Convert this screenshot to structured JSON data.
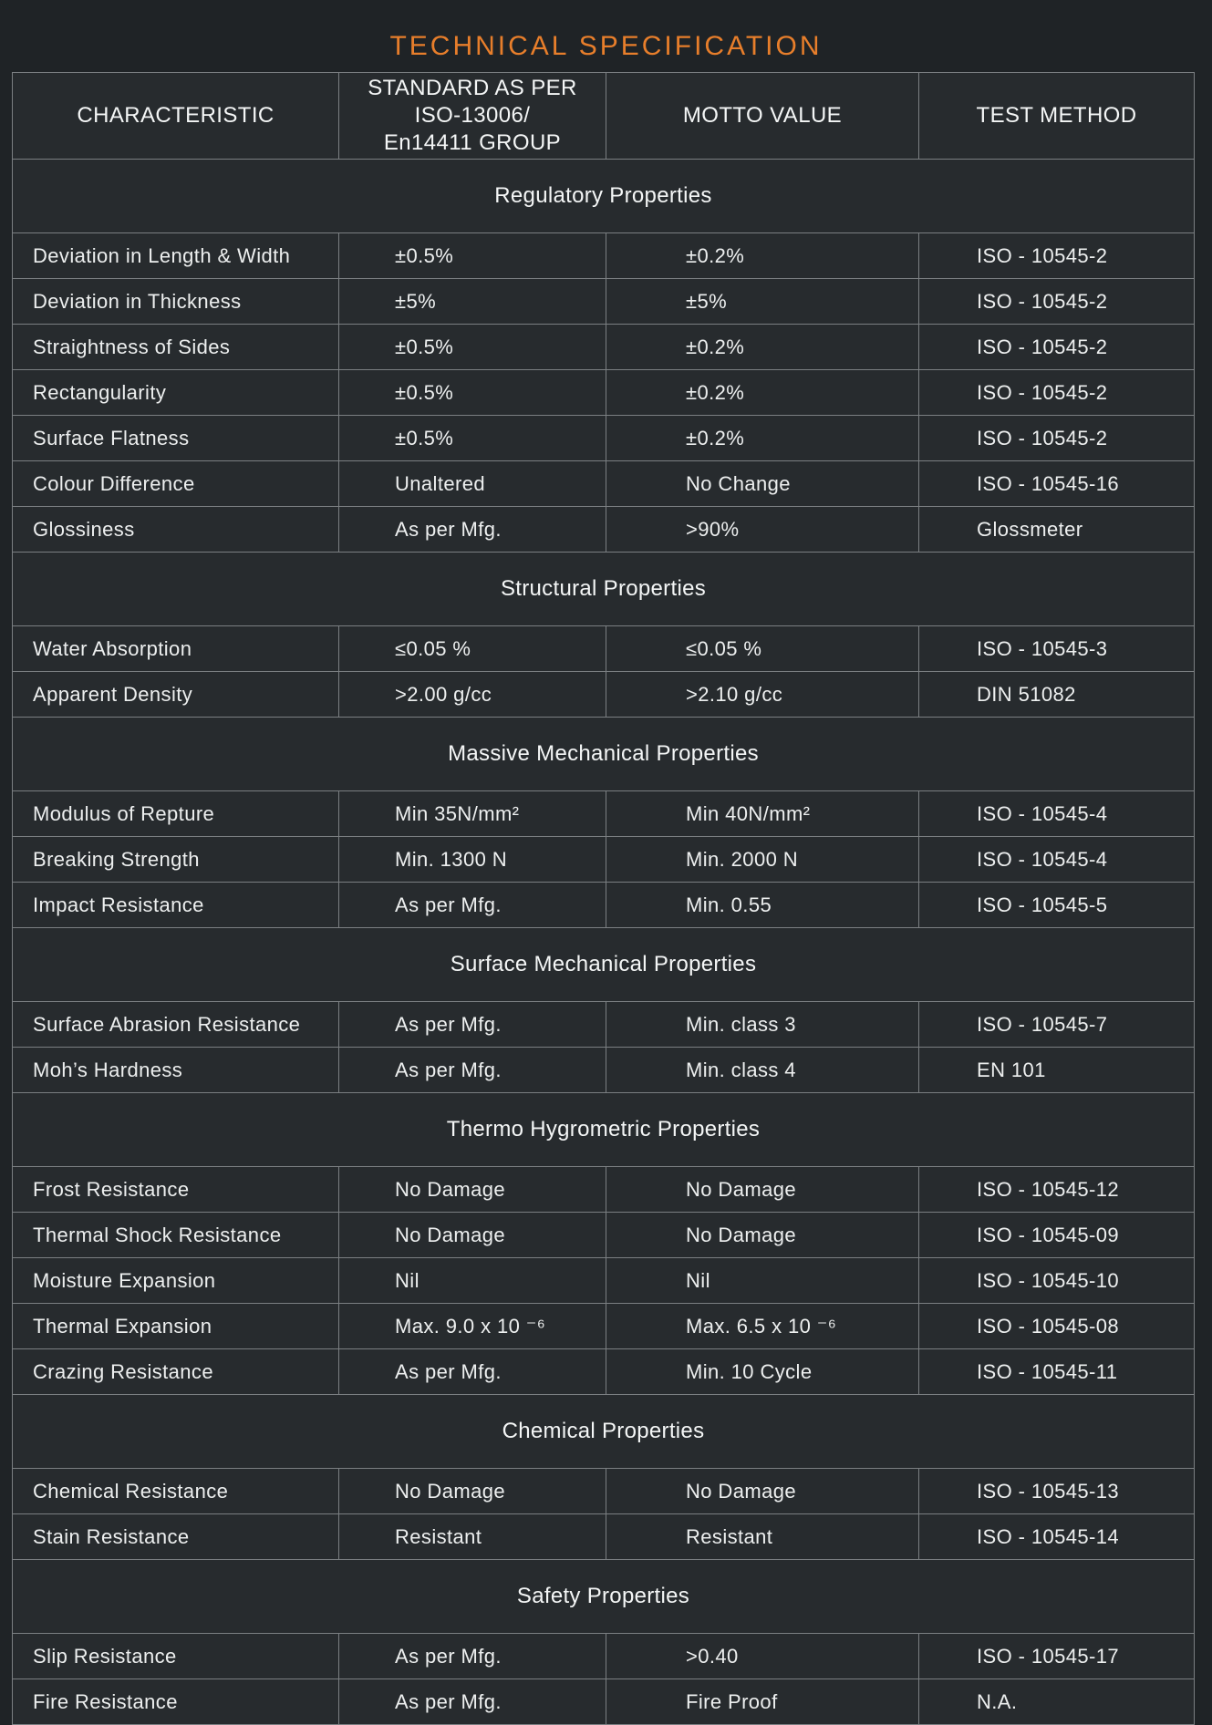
{
  "page_title": "TECHNICAL SPECIFICATION",
  "colors": {
    "accent_orange": "#e77e2b",
    "page_background": "#1f2326",
    "table_background": "#272b2e",
    "grid_line": "#7b7f82",
    "text_primary": "#f4f6f6"
  },
  "table": {
    "columns": [
      "CHARACTERISTIC",
      "STANDARD AS PER\nISO-13006/\nEn14411 GROUP",
      "MOTTO VALUE",
      "TEST METHOD"
    ],
    "sections": [
      {
        "title": "Regulatory Properties",
        "rows": [
          {
            "characteristic": "Deviation in Length & Width",
            "standard": "±0.5%",
            "motto": "±0.2%",
            "test": "ISO - 10545-2"
          },
          {
            "characteristic": "Deviation in Thickness",
            "standard": "±5%",
            "motto": "±5%",
            "test": "ISO - 10545-2"
          },
          {
            "characteristic": "Straightness of Sides",
            "standard": "±0.5%",
            "motto": "±0.2%",
            "test": "ISO - 10545-2"
          },
          {
            "characteristic": "Rectangularity",
            "standard": "±0.5%",
            "motto": "±0.2%",
            "test": "ISO - 10545-2"
          },
          {
            "characteristic": "Surface Flatness",
            "standard": "±0.5%",
            "motto": "±0.2%",
            "test": "ISO - 10545-2"
          },
          {
            "characteristic": "Colour Difference",
            "standard": "Unaltered",
            "motto": "No Change",
            "test": "ISO - 10545-16"
          },
          {
            "characteristic": "Glossiness",
            "standard": "As per Mfg.",
            "motto": ">90%",
            "test": "Glossmeter"
          }
        ]
      },
      {
        "title": "Structural Properties",
        "rows": [
          {
            "characteristic": "Water Absorption",
            "standard": "≤0.05 %",
            "motto": "≤0.05 %",
            "test": "ISO - 10545-3"
          },
          {
            "characteristic": "Apparent Density",
            "standard": ">2.00 g/cc",
            "motto": ">2.10 g/cc",
            "test": "DIN 51082"
          }
        ]
      },
      {
        "title": "Massive Mechanical Properties",
        "rows": [
          {
            "characteristic": "Modulus of Repture",
            "standard": "Min 35N/mm²",
            "motto": "Min 40N/mm²",
            "test": "ISO - 10545-4"
          },
          {
            "characteristic": "Breaking Strength",
            "standard": "Min. 1300 N",
            "motto": "Min. 2000 N",
            "test": "ISO - 10545-4"
          },
          {
            "characteristic": "Impact Resistance",
            "standard": "As per Mfg.",
            "motto": "Min. 0.55",
            "test": "ISO - 10545-5"
          }
        ]
      },
      {
        "title": "Surface Mechanical Properties",
        "rows": [
          {
            "characteristic": "Surface Abrasion Resistance",
            "standard": "As per Mfg.",
            "motto": "Min. class 3",
            "test": "ISO - 10545-7"
          },
          {
            "characteristic": "Moh’s Hardness",
            "standard": "As per Mfg.",
            "motto": "Min. class 4",
            "test": "EN 101"
          }
        ]
      },
      {
        "title": "Thermo Hygrometric Properties",
        "rows": [
          {
            "characteristic": "Frost Resistance",
            "standard": "No Damage",
            "motto": "No Damage",
            "test": "ISO - 10545-12"
          },
          {
            "characteristic": "Thermal Shock Resistance",
            "standard": "No Damage",
            "motto": "No Damage",
            "test": "ISO - 10545-09"
          },
          {
            "characteristic": "Moisture Expansion",
            "standard": "Nil",
            "motto": "Nil",
            "test": "ISO - 10545-10"
          },
          {
            "characteristic": "Thermal Expansion",
            "standard": "Max. 9.0 x 10 ⁻⁶",
            "motto": "Max. 6.5 x 10 ⁻⁶",
            "test": "ISO - 10545-08"
          },
          {
            "characteristic": "Crazing Resistance",
            "standard": "As per Mfg.",
            "motto": "Min. 10 Cycle",
            "test": "ISO - 10545-11"
          }
        ]
      },
      {
        "title": "Chemical Properties",
        "rows": [
          {
            "characteristic": "Chemical Resistance",
            "standard": "No Damage",
            "motto": "No Damage",
            "test": "ISO - 10545-13",
            "emphasis": true
          },
          {
            "characteristic": "Stain Resistance",
            "standard": "Resistant",
            "motto": "Resistant",
            "test": "ISO - 10545-14",
            "emphasis": true
          }
        ]
      },
      {
        "title": "Safety Properties",
        "rows": [
          {
            "characteristic": "Slip Resistance",
            "standard": "As per Mfg.",
            "motto": ">0.40",
            "test": "ISO - 10545-17"
          },
          {
            "characteristic": "Fire Resistance",
            "standard": "As per Mfg.",
            "motto": "Fire Proof",
            "test": "N.A."
          }
        ]
      }
    ]
  }
}
